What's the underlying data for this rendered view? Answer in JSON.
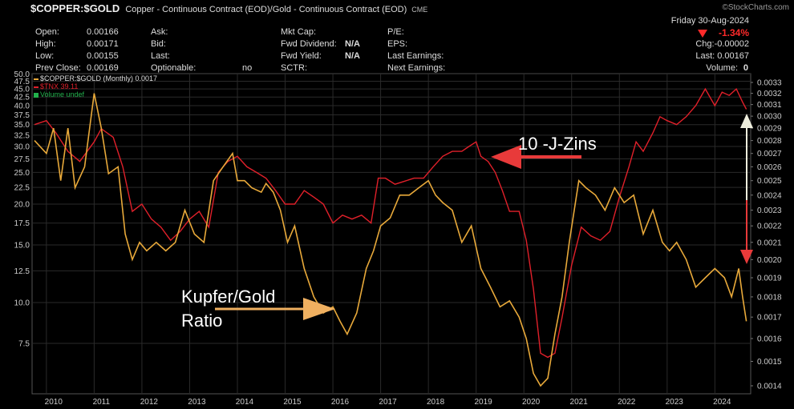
{
  "header": {
    "symbol": "$COPPER:$GOLD",
    "description": "Copper - Continuous Contract (EOD)/Gold - Continuous Contract (EOD)",
    "exchange": "CME",
    "watermark": "©StockCharts.com",
    "date": "Friday  30-Aug-2024",
    "change_pct": "-1.34%",
    "fields": {
      "open_label": "Open:",
      "open": "0.00166",
      "high_label": "High:",
      "high": "0.00171",
      "low_label": "Low:",
      "low": "0.00155",
      "prevclose_label": "Prev Close:",
      "prevclose": "0.00169",
      "ask_label": "Ask:",
      "bid_label": "Bid:",
      "last_label": "Last:",
      "optionable_label": "Optionable:",
      "optionable": "no",
      "mktcap_label": "Mkt Cap:",
      "fwddiv_label": "Fwd Dividend:",
      "fwddiv": "N/A",
      "fwdyield_label": "Fwd Yield:",
      "fwdyield": "N/A",
      "sctr_label": "SCTR:",
      "pe_label": "P/E:",
      "eps_label": "EPS:",
      "lastearn_label": "Last Earnings:",
      "nextearn_label": "Next Earnings:",
      "chg": "Chg:-0.00002",
      "last": "Last: 0.00167",
      "volume_label": "Volume:",
      "volume": "0"
    }
  },
  "legend": {
    "item1": "$COPPER:$GOLD (Monthly) 0.0017",
    "item2": "$TNX 39.11",
    "item3": "Volume undef"
  },
  "annotations": {
    "tnx": "10 -J-Zins",
    "ratio_line1": "Kupfer/Gold",
    "ratio_line2": "Ratio"
  },
  "colors": {
    "ratio": "#e8a93a",
    "tnx": "#e0202a",
    "grid": "#2a2a2a",
    "annotation_ratio": "#f0b060",
    "annotation_tnx": "#e83a3a",
    "annotation_neutral": "#eeeedd"
  },
  "chart_data": {
    "type": "line",
    "x_ticks": [
      "2010",
      "2011",
      "2012",
      "2013",
      "2014",
      "2015",
      "2016",
      "2017",
      "2018",
      "2019",
      "2020",
      "2021",
      "2022",
      "2023",
      "2024"
    ],
    "left_axis": {
      "label": "$TNX",
      "scale": "log",
      "ticks": [
        7.5,
        10.0,
        12.5,
        15.0,
        17.5,
        20.0,
        22.5,
        25.0,
        27.5,
        30.0,
        32.5,
        35.0,
        37.5,
        40.0,
        42.5,
        45.0,
        47.5,
        50.0
      ]
    },
    "right_axis": {
      "label": "$COPPER:$GOLD",
      "scale": "log",
      "ticks": [
        0.0014,
        0.0015,
        0.0016,
        0.0017,
        0.0018,
        0.0019,
        0.002,
        0.0021,
        0.0022,
        0.0023,
        0.0024,
        0.0025,
        0.0026,
        0.0027,
        0.0028,
        0.0029,
        0.003,
        0.0031,
        0.0032,
        0.0033
      ]
    },
    "series": [
      {
        "name": "$COPPER:$GOLD",
        "axis": "right",
        "x": [
          2009.75,
          2010.0,
          2010.15,
          2010.3,
          2010.45,
          2010.6,
          2010.8,
          2011.0,
          2011.15,
          2011.3,
          2011.5,
          2011.65,
          2011.8,
          2011.95,
          2012.1,
          2012.3,
          2012.5,
          2012.7,
          2012.9,
          2013.1,
          2013.3,
          2013.5,
          2013.7,
          2013.9,
          2014.0,
          2014.15,
          2014.3,
          2014.5,
          2014.6,
          2014.75,
          2014.9,
          2015.05,
          2015.2,
          2015.4,
          2015.6,
          2015.8,
          2016.0,
          2016.15,
          2016.3,
          2016.5,
          2016.7,
          2016.85,
          2017.0,
          2017.2,
          2017.4,
          2017.6,
          2017.8,
          2018.0,
          2018.15,
          2018.3,
          2018.5,
          2018.7,
          2018.9,
          2019.1,
          2019.3,
          2019.5,
          2019.7,
          2019.9,
          2020.05,
          2020.2,
          2020.35,
          2020.5,
          2020.65,
          2020.8,
          2020.95,
          2021.15,
          2021.3,
          2021.5,
          2021.7,
          2021.9,
          2022.1,
          2022.3,
          2022.5,
          2022.7,
          2022.9,
          2023.05,
          2023.2,
          2023.4,
          2023.6,
          2023.8,
          2024.0,
          2024.2,
          2024.35,
          2024.5,
          2024.58,
          2024.66
        ],
        "values": [
          0.0028,
          0.0027,
          0.0029,
          0.0025,
          0.0029,
          0.00245,
          0.0026,
          0.0032,
          0.0029,
          0.00255,
          0.0026,
          0.00215,
          0.002,
          0.0021,
          0.00205,
          0.0021,
          0.00205,
          0.0021,
          0.0023,
          0.00215,
          0.0021,
          0.0025,
          0.0026,
          0.0027,
          0.0025,
          0.0025,
          0.00245,
          0.00242,
          0.00248,
          0.00242,
          0.0023,
          0.0021,
          0.0022,
          0.00195,
          0.0018,
          0.00172,
          0.00175,
          0.00168,
          0.00162,
          0.00172,
          0.00195,
          0.00205,
          0.0022,
          0.00225,
          0.0024,
          0.0024,
          0.00245,
          0.0025,
          0.0024,
          0.00235,
          0.0023,
          0.0021,
          0.0022,
          0.00195,
          0.00185,
          0.00175,
          0.00178,
          0.0017,
          0.0016,
          0.00145,
          0.0014,
          0.00143,
          0.00162,
          0.0018,
          0.0021,
          0.0025,
          0.00245,
          0.0024,
          0.0023,
          0.00245,
          0.00235,
          0.0024,
          0.00215,
          0.0023,
          0.0021,
          0.00205,
          0.0021,
          0.002,
          0.00185,
          0.0019,
          0.00195,
          0.0019,
          0.0018,
          0.00195,
          0.0018,
          0.00168
        ]
      },
      {
        "name": "$TNX",
        "axis": "left",
        "x": [
          2009.75,
          2010.0,
          2010.2,
          2010.45,
          2010.7,
          2011.0,
          2011.15,
          2011.4,
          2011.6,
          2011.8,
          2012.0,
          2012.2,
          2012.4,
          2012.6,
          2012.8,
          2013.0,
          2013.2,
          2013.4,
          2013.6,
          2013.8,
          2014.0,
          2014.2,
          2014.4,
          2014.6,
          2014.8,
          2015.0,
          2015.2,
          2015.4,
          2015.6,
          2015.8,
          2016.0,
          2016.2,
          2016.4,
          2016.6,
          2016.8,
          2016.95,
          2017.1,
          2017.3,
          2017.5,
          2017.7,
          2017.9,
          2018.1,
          2018.3,
          2018.5,
          2018.7,
          2018.85,
          2019.0,
          2019.1,
          2019.25,
          2019.4,
          2019.55,
          2019.7,
          2019.9,
          2020.05,
          2020.2,
          2020.35,
          2020.5,
          2020.65,
          2020.8,
          2021.0,
          2021.2,
          2021.4,
          2021.6,
          2021.8,
          2022.0,
          2022.2,
          2022.35,
          2022.5,
          2022.7,
          2022.85,
          2023.0,
          2023.2,
          2023.4,
          2023.6,
          2023.8,
          2024.0,
          2024.15,
          2024.3,
          2024.45,
          2024.58,
          2024.66
        ],
        "values": [
          35,
          36,
          33,
          29,
          27,
          31,
          34,
          32,
          26,
          19,
          20,
          18,
          17,
          15.5,
          16.5,
          18,
          19,
          17,
          25,
          27,
          28,
          26,
          25,
          24,
          22,
          20,
          20,
          22,
          21,
          20,
          17.5,
          18.5,
          18,
          18.5,
          17.5,
          24,
          24,
          23,
          23.5,
          24,
          24,
          26,
          28,
          29,
          29,
          30,
          31,
          28,
          27,
          25,
          22,
          19,
          19,
          15.5,
          11,
          7,
          6.8,
          7,
          9,
          13,
          17,
          16,
          15.5,
          16.5,
          21,
          26,
          31,
          29,
          33,
          37,
          36,
          35,
          37,
          40,
          45,
          40,
          44,
          43,
          45,
          41,
          39
        ]
      }
    ]
  }
}
